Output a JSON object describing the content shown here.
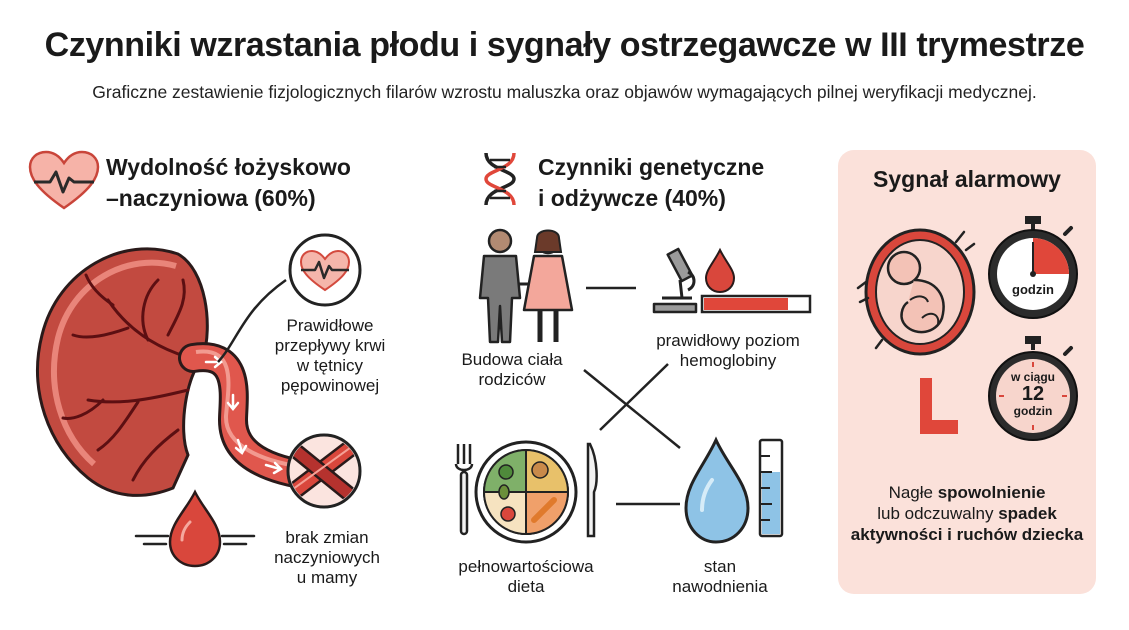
{
  "title": "Czynniki wzrastania płodu i sygnały ostrzegawcze w III trymestrze",
  "subtitle": "Graficzne zestawienie fizjologicznych filarów wzrostu maluszka oraz objawów wymagających pilnej weryfikacji medycznej.",
  "placenta_section": {
    "title_line1": "Wydolność łożyskowo",
    "title_line2": "–naczyniowa (60%)",
    "item1": [
      "Prawidłowe",
      "przepływy krwi",
      "w tętnicy",
      "pępowinowej"
    ],
    "item2": [
      "brak zmian",
      "naczyniowych",
      "u mamy"
    ]
  },
  "genetic_section": {
    "title_line1": "Czynniki genetyczne",
    "title_line2": "i odżywcze (40%)",
    "parents": [
      "Budowa ciała",
      "rodziców"
    ],
    "hemoglobin": [
      "prawidłowy poziom",
      "hemoglobiny"
    ],
    "diet": [
      "pełnowartościowa",
      "dieta"
    ],
    "hydration": [
      "stan",
      "nawodnienia"
    ]
  },
  "alarm_section": {
    "title": "Sygnał alarmowy",
    "stopwatch1_label": "godzin",
    "stopwatch2_line1": "w ciągu",
    "stopwatch2_number": "12",
    "stopwatch2_line2": "godzin",
    "text_part1": "Nagłe ",
    "text_bold1": "spowolnienie",
    "text_part2": "lub odczuwalny ",
    "text_bold2": "spadek aktywności i ruchów dziecka"
  },
  "colors": {
    "accent_red": "#e0473a",
    "dark_red": "#7a1418",
    "placenta_fill": "#c4473f",
    "card_bg": "#fbe1da",
    "water_blue": "#8ec3e6",
    "outline": "#222222"
  }
}
